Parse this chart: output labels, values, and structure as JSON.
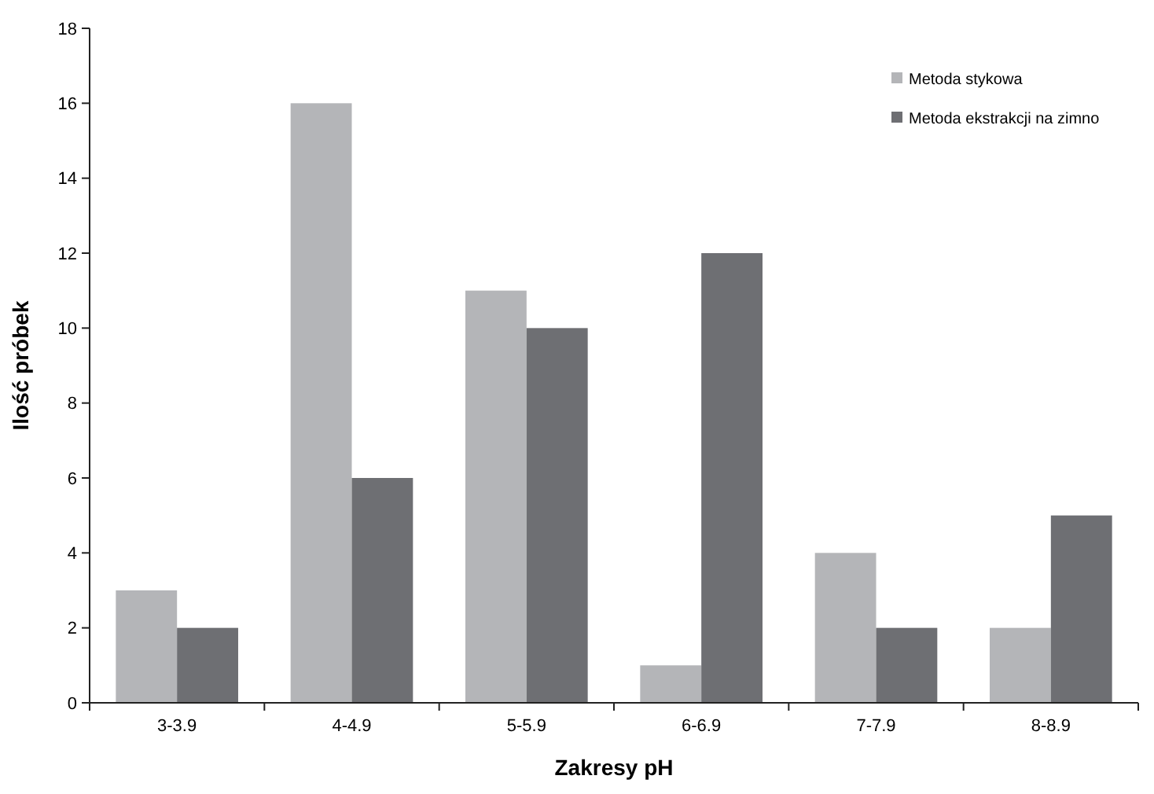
{
  "chart_data": {
    "type": "bar",
    "xlabel": "Zakresy pH",
    "ylabel": "Ilość próbek",
    "categories": [
      "3-3.9",
      "4-4.9",
      "5-5.9",
      "6-6.9",
      "7-7.9",
      "8-8.9"
    ],
    "series": [
      {
        "name": "Metoda stykowa",
        "color": "#b4b5b8",
        "values": [
          3,
          16,
          11,
          1,
          4,
          2
        ]
      },
      {
        "name": "Metoda ekstrakcji na zimno",
        "color": "#6e6f73",
        "values": [
          2,
          6,
          10,
          12,
          2,
          5
        ]
      }
    ],
    "ylim": [
      0,
      18
    ],
    "yticks": [
      0,
      2,
      4,
      6,
      8,
      10,
      12,
      14,
      16,
      18
    ],
    "grid": false,
    "legend": "top right"
  }
}
